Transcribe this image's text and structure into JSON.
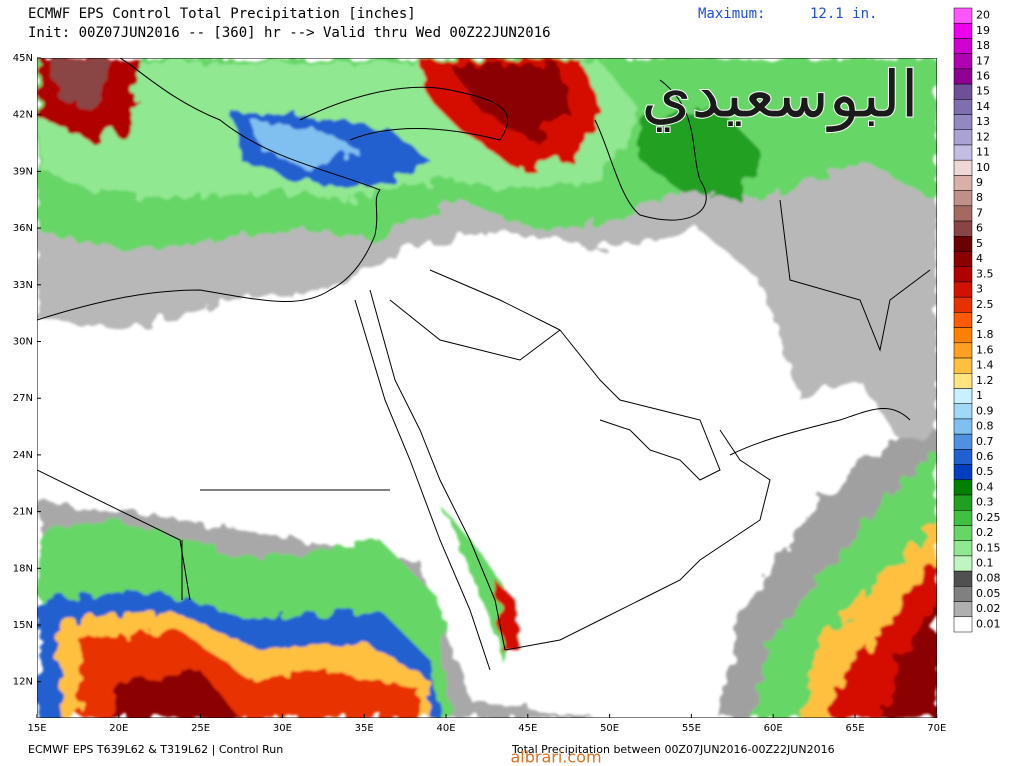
{
  "header": {
    "title": "ECMWF EPS Control Total Precipitation [inches]",
    "subtitle": "Init: 00Z07JUN2016 -- [360] hr --> Valid thru Wed 00Z22JUN2016",
    "maximum_label": "Maximum:",
    "maximum_value": "12.1 in."
  },
  "watermark": "البوسعيدي",
  "map": {
    "lat_labels": [
      "45N",
      "42N",
      "39N",
      "36N",
      "33N",
      "30N",
      "27N",
      "24N",
      "21N",
      "18N",
      "15N",
      "12N"
    ],
    "lon_labels": [
      "15E",
      "20E",
      "25E",
      "30E",
      "35E",
      "40E",
      "45E",
      "50E",
      "55E",
      "60E",
      "65E",
      "70E"
    ]
  },
  "colorbar": {
    "labels": [
      "20",
      "19",
      "18",
      "17",
      "16",
      "15",
      "14",
      "13",
      "12",
      "11",
      "10",
      "9",
      "8",
      "7",
      "6",
      "5",
      "4",
      "3.5",
      "3",
      "2.5",
      "2",
      "1.8",
      "1.6",
      "1.4",
      "1.2",
      "1",
      "0.9",
      "0.8",
      "0.7",
      "0.6",
      "0.5",
      "0.4",
      "0.3",
      "0.25",
      "0.2",
      "0.15",
      "0.1",
      "0.08",
      "0.05",
      "0.02",
      "0.01"
    ],
    "colors": [
      "#ff55ff",
      "#ee00ee",
      "#d000d0",
      "#b000b0",
      "#900090",
      "#6e4f9a",
      "#7f6eb0",
      "#9388c2",
      "#aaa2d2",
      "#c4bde2",
      "#eed8d6",
      "#d8b0a8",
      "#c09088",
      "#a46a62",
      "#8a4444",
      "#6b0000",
      "#8b0000",
      "#b00000",
      "#d41000",
      "#e83000",
      "#ff5a00",
      "#ff8000",
      "#ffa020",
      "#ffc040",
      "#ffe480",
      "#c8f0ff",
      "#a0d8f8",
      "#80c0f0",
      "#5090e0",
      "#2060d0",
      "#0040c0",
      "#008000",
      "#20a020",
      "#40c040",
      "#66d666",
      "#90e890",
      "#c0f4c0",
      "#505050",
      "#808080",
      "#b0b0b0",
      "#ffffff"
    ]
  },
  "footer": {
    "left": "ECMWF EPS T639L62 & T319L62 | Control Run",
    "right": "Total Precipitation between 00Z07JUN2016-00Z22JUN2016",
    "site": "albrari.com"
  }
}
